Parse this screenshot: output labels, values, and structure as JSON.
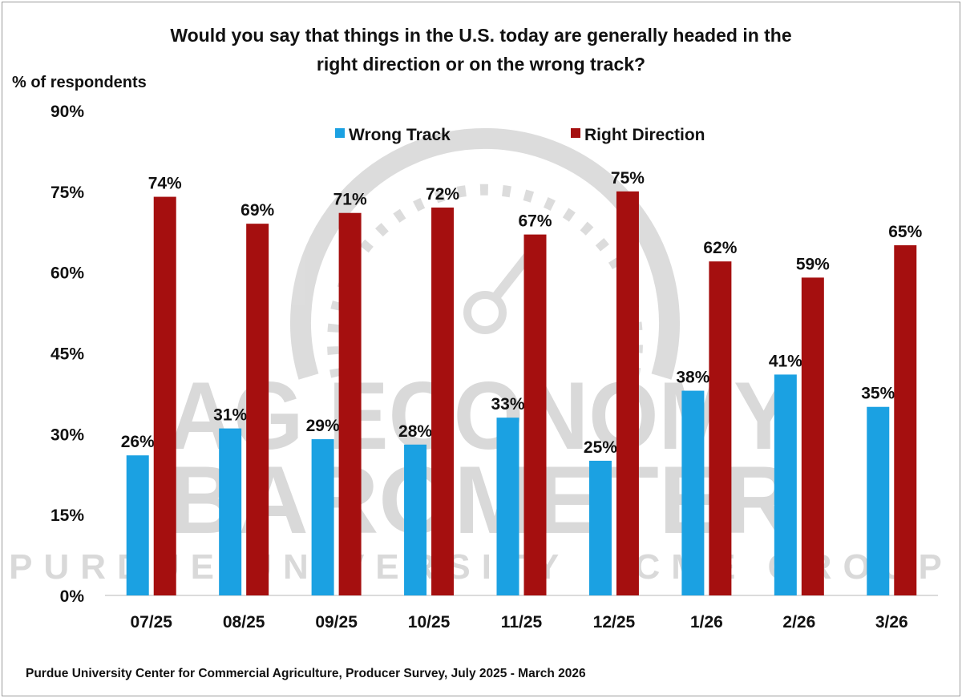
{
  "chart_data": {
    "type": "bar",
    "title": "Would you say that things in the U.S. today are generally headed in the right direction or on the wrong track?",
    "title_lines": [
      "Would you say that things in the U.S. today are generally headed in the",
      "right direction or on the wrong track?"
    ],
    "ylabel": "% of respondents",
    "xlabel": "",
    "ylim": [
      0,
      90
    ],
    "yticks": [
      0,
      15,
      30,
      45,
      60,
      75,
      90
    ],
    "ytick_labels": [
      "0%",
      "15%",
      "30%",
      "45%",
      "60%",
      "75%",
      "90%"
    ],
    "grid": false,
    "legend_position": "top-center",
    "categories": [
      "07/25",
      "08/25",
      "09/25",
      "10/25",
      "11/25",
      "12/25",
      "1/26",
      "2/26",
      "3/26"
    ],
    "series": [
      {
        "name": "Wrong Track",
        "color": "#1ba1e2",
        "values": [
          26,
          31,
          29,
          28,
          33,
          25,
          38,
          41,
          35
        ]
      },
      {
        "name": "Right Direction",
        "color": "#a50f0f",
        "values": [
          74,
          69,
          71,
          72,
          67,
          75,
          62,
          59,
          65
        ]
      }
    ],
    "data_label_suffix": "%",
    "source": "Purdue University Center for Commercial Agriculture, Producer Survey, July 2025 - March 2026",
    "watermark": "AG ECONOMY BAROMETER · PURDUE UNIVERSITY · CME GROUP"
  }
}
